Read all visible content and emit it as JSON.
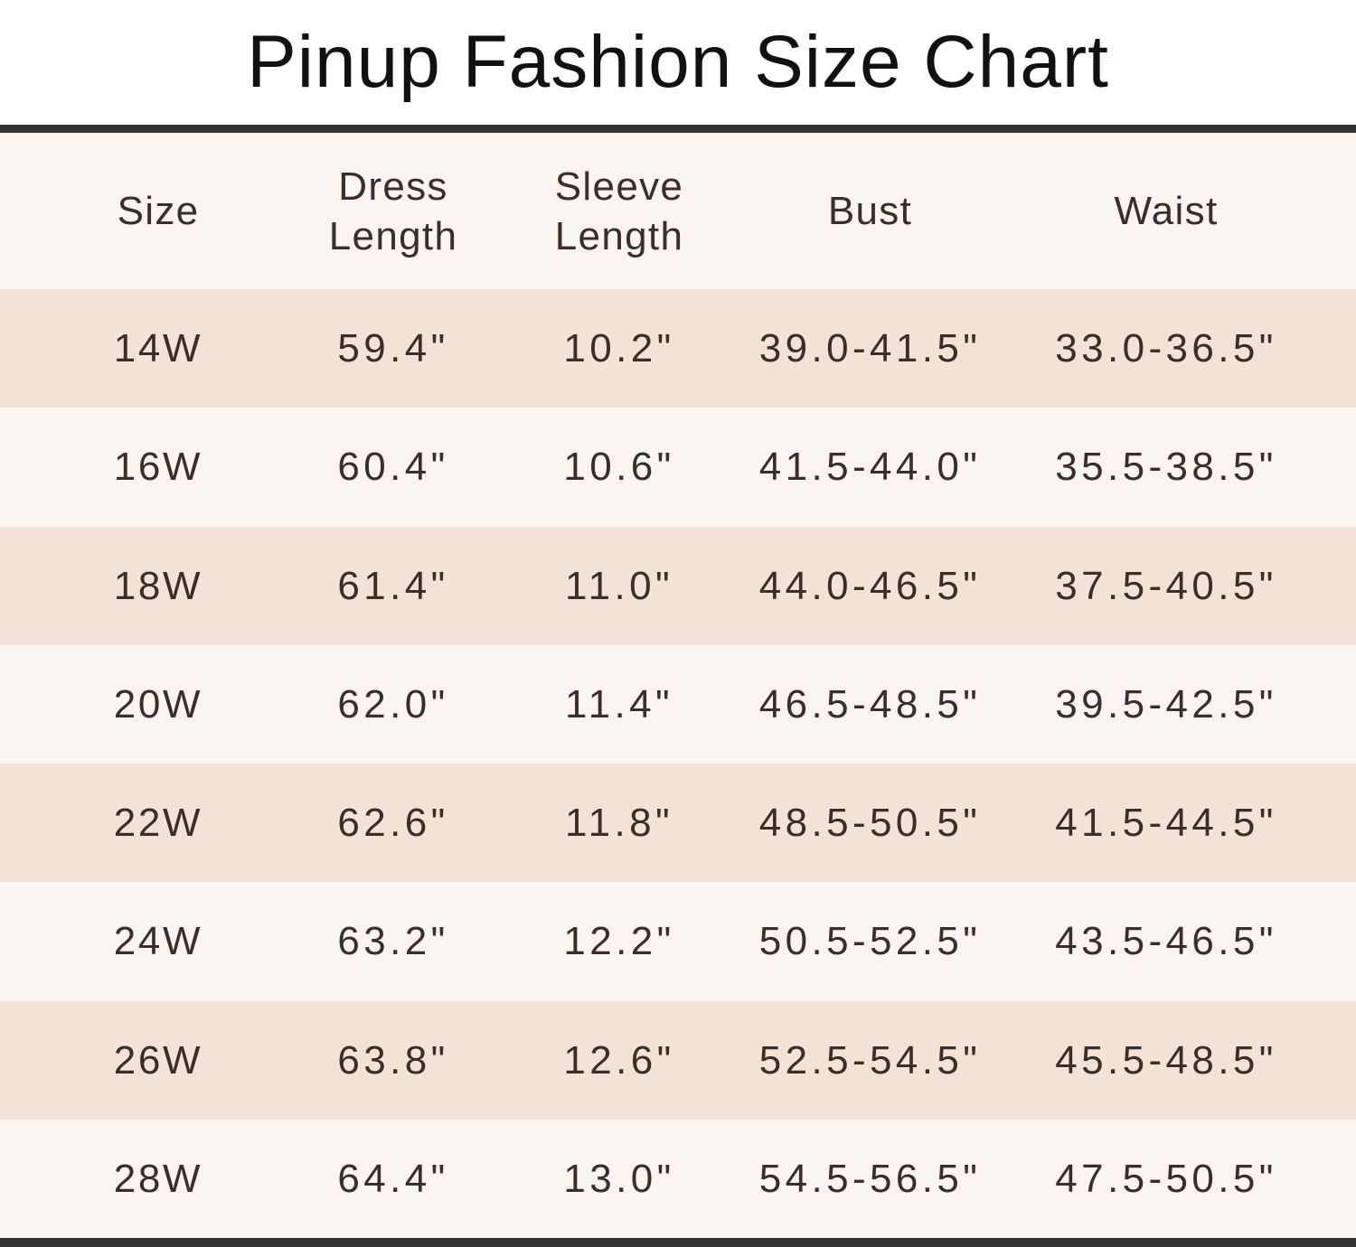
{
  "title": "Pinup Fashion Size Chart",
  "chart_data": {
    "type": "table",
    "title": "Pinup Fashion Size Chart",
    "columns": [
      "Size",
      "Dress Length",
      "Sleeve Length",
      "Bust",
      "Waist"
    ],
    "rows": [
      [
        "14W",
        "59.4\"",
        "10.2\"",
        "39.0-41.5\"",
        "33.0-36.5\""
      ],
      [
        "16W",
        "60.4\"",
        "10.6\"",
        "41.5-44.0\"",
        "35.5-38.5\""
      ],
      [
        "18W",
        "61.4\"",
        "11.0\"",
        "44.0-46.5\"",
        "37.5-40.5\""
      ],
      [
        "20W",
        "62.0\"",
        "11.4\"",
        "46.5-48.5\"",
        "39.5-42.5\""
      ],
      [
        "22W",
        "62.6\"",
        "11.8\"",
        "48.5-50.5\"",
        "41.5-44.5\""
      ],
      [
        "24W",
        "63.2\"",
        "12.2\"",
        "50.5-52.5\"",
        "43.5-46.5\""
      ],
      [
        "26W",
        "63.8\"",
        "12.6\"",
        "52.5-54.5\"",
        "45.5-48.5\""
      ],
      [
        "28W",
        "64.4\"",
        "13.0\"",
        "54.5-56.5\"",
        "47.5-50.5\""
      ]
    ]
  },
  "colors": {
    "row_dark": "#f2e2d7",
    "row_light": "#fbf5f1",
    "header_bg": "#fbf5f1",
    "divider": "#333333",
    "text": "#3a2f28",
    "title_text": "#111111",
    "page_bg": "#ffffff"
  }
}
